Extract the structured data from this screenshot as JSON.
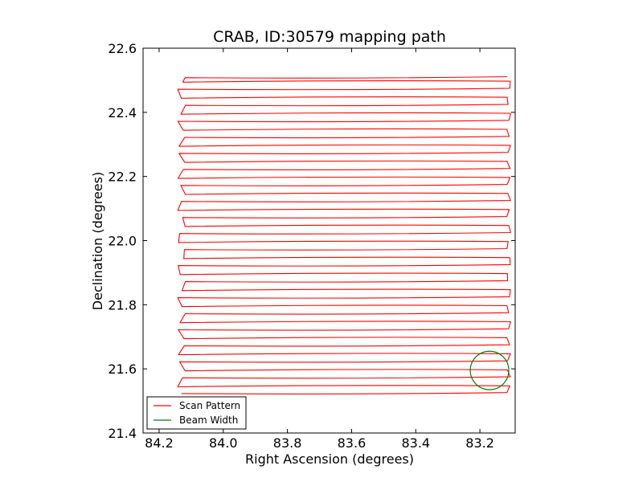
{
  "chart_data": {
    "type": "line",
    "title": "CRAB, ID:30579 mapping path",
    "xlabel": "Right Ascension (degrees)",
    "ylabel": "Declination (degrees)",
    "xlim": [
      84.25,
      83.09
    ],
    "ylim": [
      21.4,
      22.6
    ],
    "x_ticks": [
      "84.2",
      "84.0",
      "83.8",
      "83.6",
      "83.4",
      "83.2"
    ],
    "y_ticks": [
      "21.4",
      "21.6",
      "21.8",
      "22.0",
      "22.2",
      "22.4",
      "22.6"
    ],
    "grid": false,
    "legend_position": "lower-left",
    "series": [
      {
        "name": "Scan Pattern",
        "color": "#ff0000",
        "x_range": [
          84.13,
          83.11
        ],
        "rows": [
          21.523,
          21.547,
          21.572,
          21.597,
          21.622,
          21.647,
          21.672,
          21.697,
          21.722,
          21.747,
          21.772,
          21.797,
          21.822,
          21.847,
          21.872,
          21.897,
          21.922,
          21.947,
          21.972,
          21.997,
          22.022,
          22.047,
          22.072,
          22.097,
          22.122,
          22.147,
          22.172,
          22.197,
          22.222,
          22.247,
          22.272,
          22.297,
          22.322,
          22.347,
          22.372,
          22.397,
          22.422,
          22.447,
          22.472,
          22.497,
          22.508
        ]
      },
      {
        "name": "Beam Width",
        "color": "#008000",
        "center": [
          83.17,
          21.595
        ],
        "radius": 0.06
      }
    ]
  }
}
